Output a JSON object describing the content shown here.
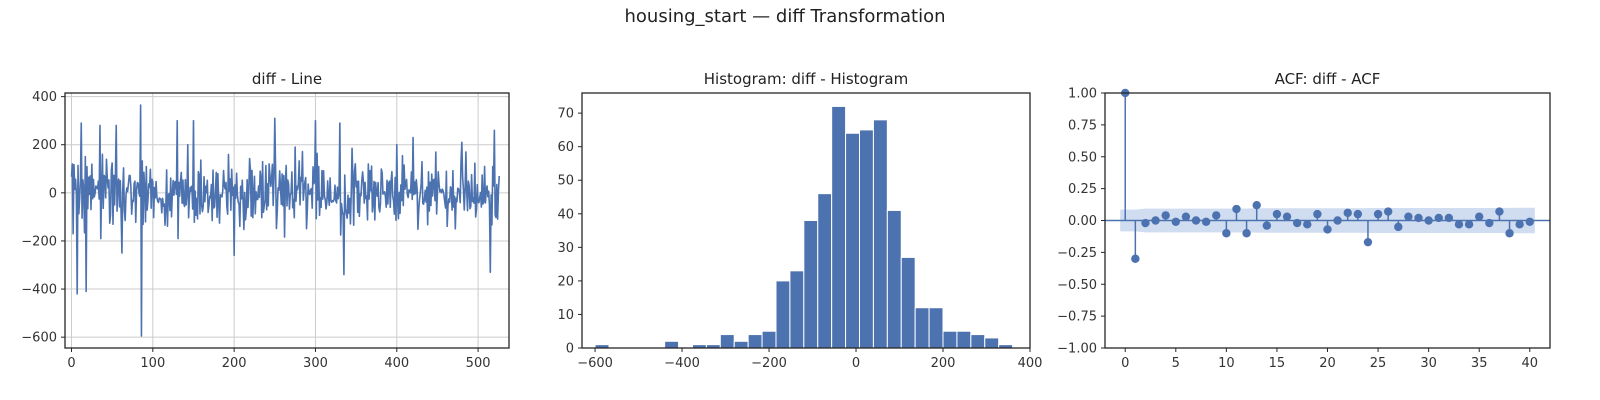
{
  "figure": {
    "title": "housing_start — diff Transformation"
  },
  "chart_data": [
    {
      "type": "line",
      "title": "diff - Line",
      "xlabel": "",
      "ylabel": "",
      "xlim": [
        -8,
        538
      ],
      "ylim": [
        -645,
        415
      ],
      "grid": true,
      "xticks": [
        0,
        100,
        200,
        300,
        400,
        500
      ],
      "yticks": [
        -600,
        -400,
        -200,
        0,
        200,
        400
      ],
      "color": "#4c72b0",
      "n_points": 527,
      "notable_points": [
        {
          "x": 1,
          "y": 120
        },
        {
          "x": 2,
          "y": -170
        },
        {
          "x": 7,
          "y": -420
        },
        {
          "x": 12,
          "y": 290
        },
        {
          "x": 18,
          "y": -410
        },
        {
          "x": 35,
          "y": 280
        },
        {
          "x": 55,
          "y": 280
        },
        {
          "x": 62,
          "y": -250
        },
        {
          "x": 85,
          "y": 365
        },
        {
          "x": 86,
          "y": -595
        },
        {
          "x": 130,
          "y": 300
        },
        {
          "x": 150,
          "y": 300
        },
        {
          "x": 200,
          "y": -260
        },
        {
          "x": 250,
          "y": 310
        },
        {
          "x": 300,
          "y": 300
        },
        {
          "x": 330,
          "y": 290
        },
        {
          "x": 335,
          "y": -340
        },
        {
          "x": 420,
          "y": 230
        },
        {
          "x": 480,
          "y": 210
        },
        {
          "x": 515,
          "y": -330
        },
        {
          "x": 520,
          "y": 260
        },
        {
          "x": 526,
          "y": 70
        }
      ],
      "typical_range": [
        -200,
        200
      ]
    },
    {
      "type": "bar",
      "title": "Histogram: diff - Histogram",
      "xlabel": "",
      "ylabel": "",
      "xlim": [
        -630,
        400
      ],
      "ylim": [
        0,
        76
      ],
      "grid": false,
      "xticks": [
        -600,
        -400,
        -200,
        0,
        200,
        400
      ],
      "yticks": [
        0,
        10,
        20,
        30,
        40,
        50,
        60,
        70
      ],
      "color": "#4c72b0",
      "bin_edges": [
        -600,
        -568,
        -536,
        -504,
        -472,
        -440,
        -408,
        -376,
        -344,
        -312,
        -280,
        -248,
        -216,
        -184,
        -152,
        -120,
        -88,
        -56,
        -24,
        8,
        40,
        72,
        104,
        136,
        168,
        200,
        232,
        264,
        296,
        328,
        360
      ],
      "counts": [
        1,
        0,
        0,
        0,
        0,
        2,
        0,
        1,
        1,
        4,
        2,
        4,
        5,
        20,
        23,
        38,
        46,
        72,
        64,
        65,
        68,
        41,
        27,
        12,
        12,
        5,
        5,
        4,
        3,
        1
      ]
    },
    {
      "type": "scatter",
      "title": "ACF: diff - ACF",
      "xlabel": "",
      "ylabel": "",
      "xlim": [
        -2,
        42
      ],
      "ylim": [
        -1,
        1
      ],
      "grid": false,
      "xticks": [
        0,
        5,
        10,
        15,
        20,
        25,
        30,
        35,
        40
      ],
      "yticks": [
        -1.0,
        -0.75,
        -0.5,
        -0.25,
        0.0,
        0.25,
        0.5,
        0.75,
        1.0
      ],
      "ytick_labels": [
        "−1.00",
        "−0.75",
        "−0.50",
        "−0.25",
        "0.00",
        "0.25",
        "0.50",
        "0.75",
        "1.00"
      ],
      "color": "#4c72b0",
      "band_color": "#b0c4e6",
      "lags": [
        0,
        1,
        2,
        3,
        4,
        5,
        6,
        7,
        8,
        9,
        10,
        11,
        12,
        13,
        14,
        15,
        16,
        17,
        18,
        19,
        20,
        21,
        22,
        23,
        24,
        25,
        26,
        27,
        28,
        29,
        30,
        31,
        32,
        33,
        34,
        35,
        36,
        37,
        38,
        39,
        40
      ],
      "acf": [
        1.0,
        -0.3,
        -0.02,
        0.0,
        0.04,
        -0.01,
        0.03,
        0.0,
        -0.01,
        0.04,
        -0.1,
        0.09,
        -0.1,
        0.12,
        -0.04,
        0.05,
        0.03,
        -0.02,
        -0.03,
        0.05,
        -0.07,
        0.0,
        0.06,
        0.05,
        -0.17,
        0.05,
        0.07,
        -0.05,
        0.03,
        0.02,
        0.0,
        0.02,
        0.02,
        -0.03,
        -0.03,
        0.03,
        -0.02,
        0.07,
        -0.1,
        -0.03,
        -0.01
      ],
      "conf_band_halfwidth": [
        0.085,
        0.085,
        0.093,
        0.093,
        0.093,
        0.093,
        0.093,
        0.093,
        0.093,
        0.093,
        0.093,
        0.094,
        0.094,
        0.095,
        0.096,
        0.096,
        0.096,
        0.096,
        0.096,
        0.096,
        0.096,
        0.096,
        0.096,
        0.096,
        0.097,
        0.098,
        0.098,
        0.098,
        0.098,
        0.098,
        0.098,
        0.098,
        0.098,
        0.098,
        0.098,
        0.098,
        0.098,
        0.098,
        0.099,
        0.1,
        0.1
      ]
    }
  ]
}
